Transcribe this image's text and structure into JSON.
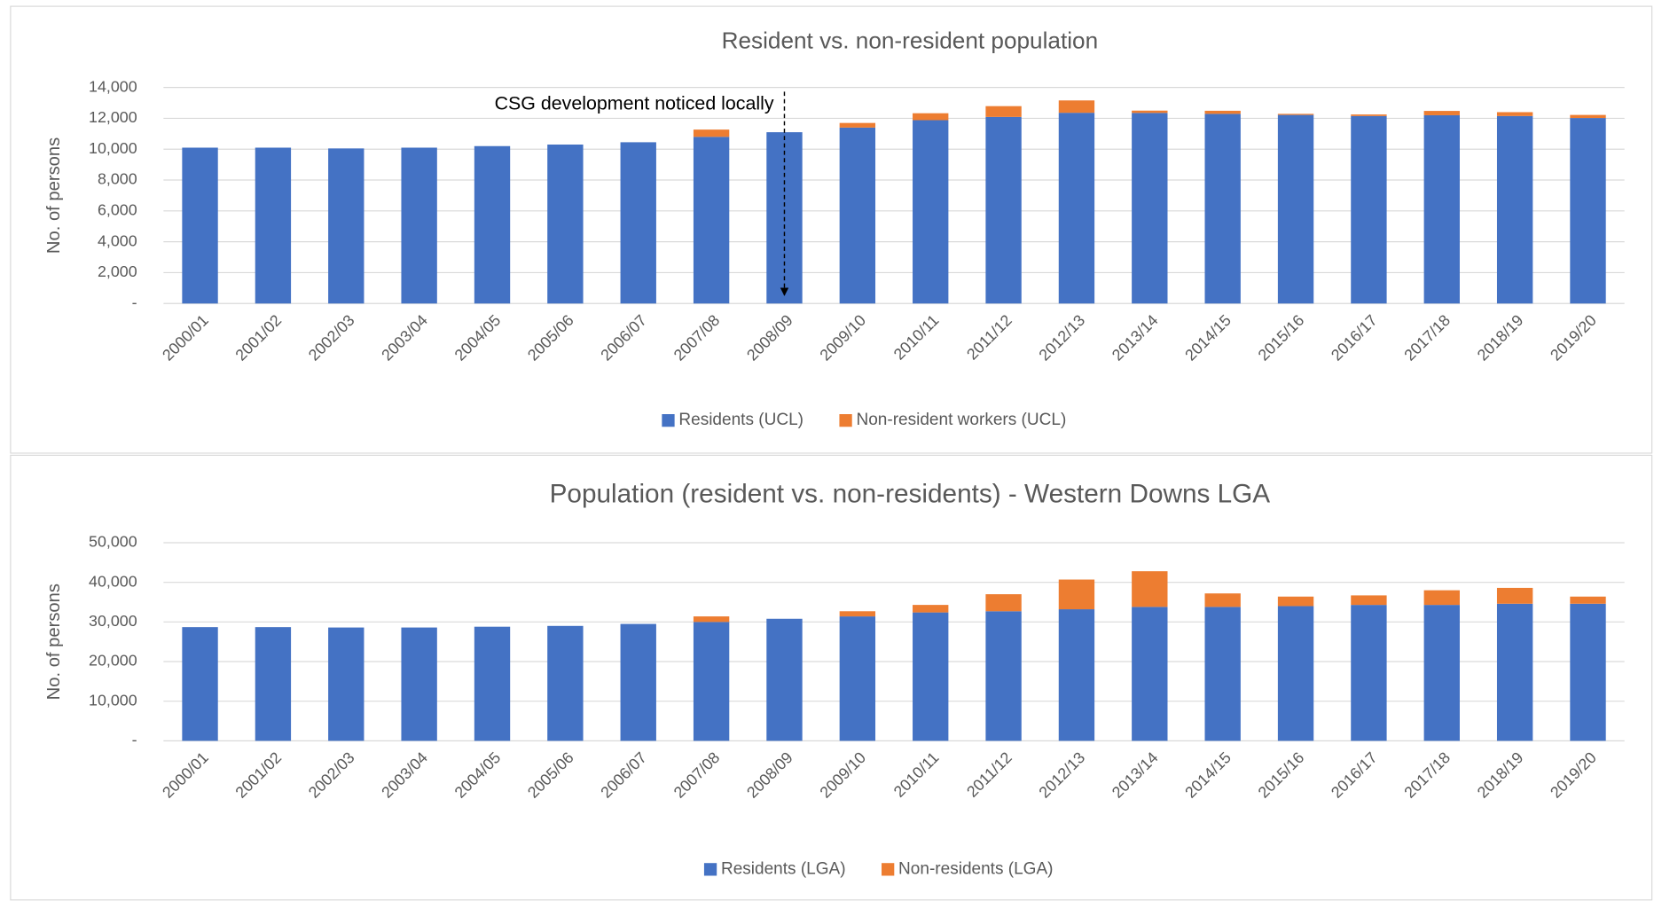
{
  "chart_data": [
    {
      "type": "stacked-bar",
      "title": "Resident vs. non-resident population",
      "y_label": "No. of persons",
      "annotation": "CSG development noticed locally",
      "categories": [
        "2000/01",
        "2001/02",
        "2002/03",
        "2003/04",
        "2004/05",
        "2005/06",
        "2006/07",
        "2007/08",
        "2008/09",
        "2009/10",
        "2010/11",
        "2011/12",
        "2012/13",
        "2013/14",
        "2014/15",
        "2015/16",
        "2016/17",
        "2017/18",
        "2018/19",
        "2019/20"
      ],
      "series": [
        {
          "name": "Residents (UCL)",
          "color": "#4472c4",
          "values": [
            10100,
            10100,
            10050,
            10100,
            10200,
            10300,
            10450,
            10800,
            11100,
            11400,
            11880,
            12090,
            12360,
            12350,
            12290,
            12220,
            12150,
            12200,
            12150,
            12020
          ]
        },
        {
          "name": "Non-resident workers (UCL)",
          "color": "#ed7d31",
          "values": [
            0,
            0,
            0,
            0,
            0,
            0,
            0,
            470,
            0,
            300,
            450,
            700,
            800,
            150,
            200,
            70,
            100,
            280,
            250,
            200
          ]
        }
      ],
      "ylim": [
        0,
        14000
      ],
      "yticks": [
        {
          "value": 0,
          "label": "-"
        },
        {
          "value": 2000,
          "label": "2,000"
        },
        {
          "value": 4000,
          "label": "4,000"
        },
        {
          "value": 6000,
          "label": "6,000"
        },
        {
          "value": 8000,
          "label": "8,000"
        },
        {
          "value": 10000,
          "label": "10,000"
        },
        {
          "value": 12000,
          "label": "12,000"
        },
        {
          "value": 14000,
          "label": "14,000"
        }
      ],
      "grid": true,
      "legend": "bottom"
    },
    {
      "type": "stacked-bar",
      "title": "Population (resident vs. non-residents) - Western Downs LGA",
      "y_label": "No. of persons",
      "categories": [
        "2000/01",
        "2001/02",
        "2002/03",
        "2003/04",
        "2004/05",
        "2005/06",
        "2006/07",
        "2007/08",
        "2008/09",
        "2009/10",
        "2010/11",
        "2011/12",
        "2012/13",
        "2013/14",
        "2014/15",
        "2015/16",
        "2016/17",
        "2017/18",
        "2018/19",
        "2019/20"
      ],
      "series": [
        {
          "name": "Residents (LGA)",
          "color": "#4472c4",
          "values": [
            28700,
            28700,
            28600,
            28600,
            28800,
            29000,
            29500,
            30000,
            30800,
            31400,
            32400,
            32700,
            33200,
            33800,
            33800,
            34000,
            34300,
            34300,
            34600,
            34600
          ]
        },
        {
          "name": "Non-residents (LGA)",
          "color": "#ed7d31",
          "values": [
            0,
            0,
            0,
            0,
            0,
            0,
            0,
            1400,
            0,
            1300,
            1900,
            4300,
            7500,
            9000,
            3400,
            2400,
            2400,
            3700,
            4000,
            1800
          ]
        }
      ],
      "ylim": [
        0,
        50000
      ],
      "yticks": [
        {
          "value": 0,
          "label": "-"
        },
        {
          "value": 10000,
          "label": "10,000"
        },
        {
          "value": 20000,
          "label": "20,000"
        },
        {
          "value": 30000,
          "label": "30,000"
        },
        {
          "value": 40000,
          "label": "40,000"
        },
        {
          "value": 50000,
          "label": "50,000"
        }
      ],
      "grid": true,
      "legend": "bottom"
    }
  ]
}
